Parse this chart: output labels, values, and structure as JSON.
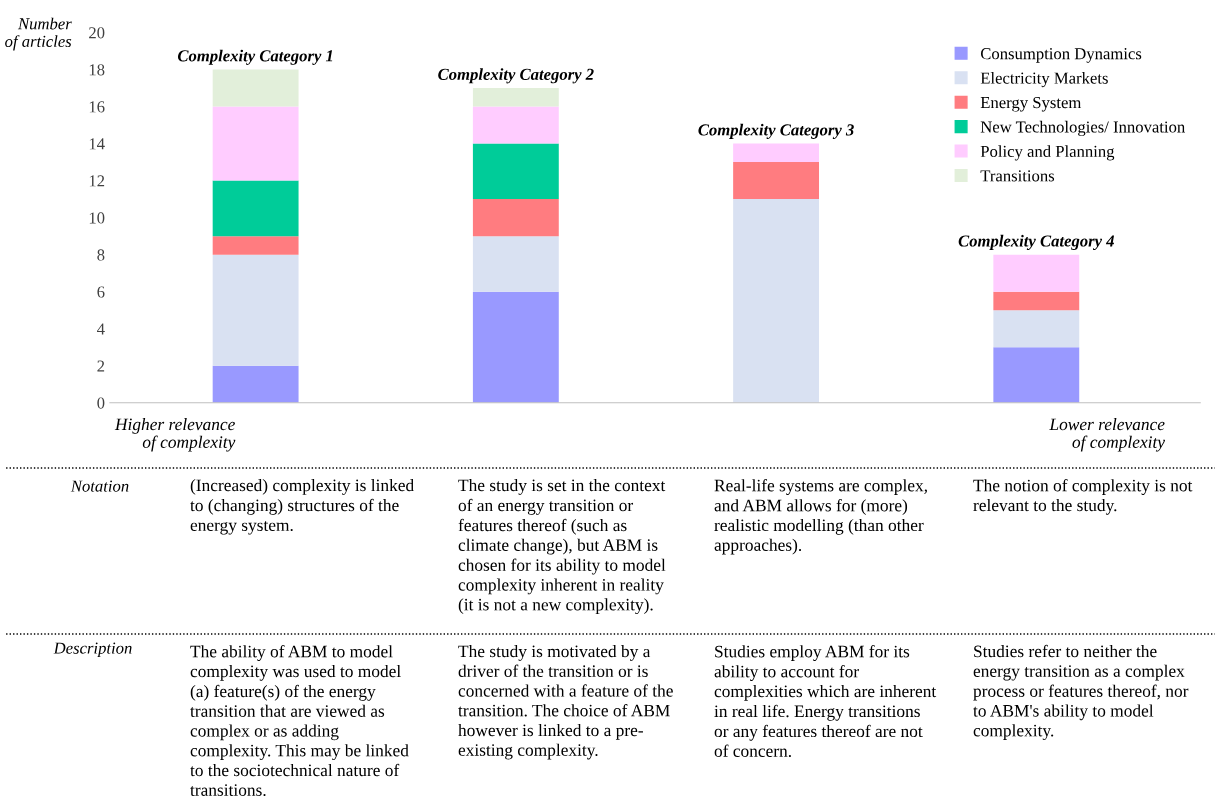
{
  "chart_data": {
    "type": "bar",
    "stacked": true,
    "ylabel": "Number\nof articles",
    "categories": [
      "Complexity Category 1",
      "Complexity Category 2",
      "Complexity Category 3",
      "Complexity Category 4"
    ],
    "series": [
      {
        "name": "Consumption Dynamics",
        "color": "#9999ff",
        "values": [
          2,
          6,
          0,
          3
        ]
      },
      {
        "name": "Electricity Markets",
        "color": "#d9e1f2",
        "values": [
          6,
          3,
          11,
          2
        ]
      },
      {
        "name": "Energy System",
        "color": "#ff7c80",
        "values": [
          1,
          2,
          2,
          1
        ]
      },
      {
        "name": "New Technologies/ Innovation",
        "color": "#00cc99",
        "values": [
          3,
          3,
          0,
          0
        ]
      },
      {
        "name": "Policy and Planning",
        "color": "#ffccff",
        "values": [
          4,
          2,
          1,
          2
        ]
      },
      {
        "name": "Transitions",
        "color": "#e2efda",
        "values": [
          2,
          1,
          0,
          0
        ]
      }
    ],
    "ylim": [
      0,
      20
    ],
    "yticks": [
      0,
      2,
      4,
      6,
      8,
      10,
      12,
      14,
      16,
      18,
      20
    ],
    "grid": false,
    "legend": "top right",
    "annotations": [
      "Higher relevance\nof complexity",
      "Lower relevance\nof complexity",
      "Notation",
      "(Increased) complexity is linked\nto (changing) structures of the\nenergy system.",
      "The study is set in the context\nof an energy transition or\nfeatures thereof (such as\nclimate change), but ABM is\nchosen for its ability to model\ncomplexity inherent in reality\n(it is not a new complexity).",
      "Real-life systems are complex,\nand ABM allows for (more)\nrealistic modelling (than other\napproaches).",
      "The notion of complexity is not\nrelevant to the study.",
      "Description",
      "The ability of ABM to model\ncomplexity was used to model\n(a) feature(s) of the energy\ntransition that are viewed as\ncomplex or as adding\ncomplexity. This may be linked\nto the sociotechnical nature of\ntransitions.",
      "The study is motivated by a\ndriver of the transition or is\nconcerned with a feature of the\ntransition. The choice of ABM\nhowever is linked to a pre-\nexisting complexity.",
      "Studies employ ABM for its\nability to account for\ncomplexities which are inherent\nin real life. Energy transitions\nor any features thereof are not\nof concern.",
      "Studies refer to neither the\nenergy transition as a complex\nprocess or features thereof, nor\nto ABM's ability to model\ncomplexity."
    ]
  }
}
